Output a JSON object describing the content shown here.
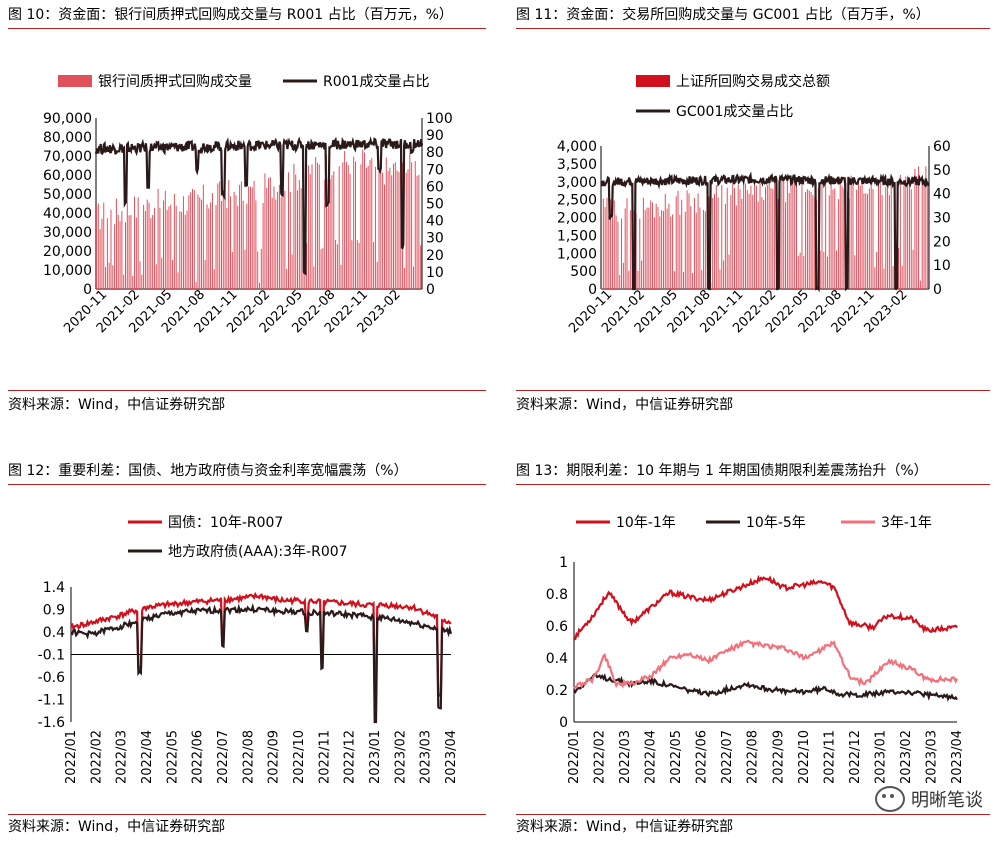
{
  "panels": [
    {
      "title": "图 10：资金面：银行间质押式回购成交量与 R001 占比（百万元，%）",
      "source": "资料来源：Wind，中信证券研究部"
    },
    {
      "title": "图 11：资金面：交易所回购成交量与 GC001 占比（百万手，%）",
      "source": "资料来源：Wind，中信证券研究部"
    },
    {
      "title": "图 12：重要利差：国债、地方政府债与资金利率宽幅震荡（%）",
      "source": "资料来源：Wind，中信证券研究部"
    },
    {
      "title": "图 13：期限利差：10 年期与 1 年期国债期限利差震荡抬升（%）",
      "source": "资料来源：Wind，中信证券研究部"
    }
  ],
  "watermark": {
    "text": "明晰笔谈",
    "icon": "wechat-icon"
  },
  "colors": {
    "red": "#d0101d",
    "dark": "#2b1a1a",
    "pink": "#f2727c",
    "barred": "#e0515c",
    "rule": "#b4201f"
  },
  "chart_data": [
    {
      "type": "bar",
      "title": "图 10：资金面：银行间质押式回购成交量与 R001 占比（百万元，%）",
      "x_ticks": [
        "2020-11",
        "2021-02",
        "2021-05",
        "2021-08",
        "2021-11",
        "2022-02",
        "2022-05",
        "2022-08",
        "2022-11",
        "2023-02"
      ],
      "y_left": {
        "range": [
          0,
          90000
        ],
        "ticks": [
          "0",
          "10,000",
          "20,000",
          "30,000",
          "40,000",
          "50,000",
          "60,000",
          "70,000",
          "80,000",
          "90,000"
        ]
      },
      "y_right": {
        "range": [
          0,
          100
        ],
        "ticks": [
          "0",
          "10",
          "20",
          "30",
          "40",
          "50",
          "60",
          "70",
          "80",
          "90",
          "100"
        ]
      },
      "series": [
        {
          "name": "银行间质押式回购成交量",
          "kind": "bar",
          "axis": "left",
          "anchors": [
            [
              0,
              38000
            ],
            [
              0.1,
              42000
            ],
            [
              0.2,
              45000
            ],
            [
              0.3,
              46000
            ],
            [
              0.4,
              50000
            ],
            [
              0.5,
              52000
            ],
            [
              0.6,
              58000
            ],
            [
              0.7,
              65000
            ],
            [
              0.8,
              68000
            ],
            [
              0.9,
              62000
            ],
            [
              1,
              66000
            ]
          ]
        },
        {
          "name": "R001成交量占比",
          "kind": "line",
          "axis": "right",
          "anchors": [
            [
              0,
              82
            ],
            [
              0.5,
              84
            ],
            [
              1,
              85
            ]
          ],
          "dips": [
            [
              0.09,
              50
            ],
            [
              0.16,
              60
            ],
            [
              0.31,
              70
            ],
            [
              0.39,
              55
            ],
            [
              0.46,
              60
            ],
            [
              0.57,
              55
            ],
            [
              0.64,
              10
            ],
            [
              0.71,
              50
            ],
            [
              0.87,
              70
            ],
            [
              0.94,
              25
            ],
            [
              0.97,
              80
            ]
          ]
        }
      ]
    },
    {
      "type": "bar",
      "title": "图 11：资金面：交易所回购成交量与 GC001 占比（百万手，%）",
      "x_ticks": [
        "2020-11",
        "2021-02",
        "2021-05",
        "2021-08",
        "2021-11",
        "2022-02",
        "2022-05",
        "2022-08",
        "2022-11",
        "2023-02"
      ],
      "y_left": {
        "range": [
          0,
          4000
        ],
        "ticks": [
          "0",
          "500",
          "1,000",
          "1,500",
          "2,000",
          "2,500",
          "3,000",
          "3,500",
          "4,000"
        ]
      },
      "y_right": {
        "range": [
          0,
          60
        ],
        "ticks": [
          "0",
          "10",
          "20",
          "30",
          "40",
          "50",
          "60"
        ]
      },
      "series": [
        {
          "name": "上证所回购交易成交总额",
          "kind": "bar",
          "axis": "left",
          "anchors": [
            [
              0,
              2200
            ],
            [
              0.15,
              2300
            ],
            [
              0.3,
              2500
            ],
            [
              0.45,
              2700
            ],
            [
              0.6,
              2800
            ],
            [
              0.75,
              2800
            ],
            [
              0.9,
              3000
            ],
            [
              1,
              3100
            ]
          ]
        },
        {
          "name": "GC001成交量占比",
          "kind": "line",
          "axis": "right",
          "anchors": [
            [
              0,
              45
            ],
            [
              0.5,
              46
            ],
            [
              1,
              45
            ]
          ],
          "dips": [
            [
              0.03,
              30
            ],
            [
              0.1,
              0
            ],
            [
              0.33,
              0
            ],
            [
              0.54,
              0
            ],
            [
              0.66,
              0
            ],
            [
              0.75,
              0
            ],
            [
              0.9,
              0
            ]
          ]
        }
      ]
    },
    {
      "type": "line",
      "title": "图 12：重要利差：国债、地方政府债与资金利率宽幅震荡（%）",
      "x_ticks": [
        "2022/01",
        "2022/02",
        "2022/03",
        "2022/04",
        "2022/05",
        "2022/06",
        "2022/07",
        "2022/08",
        "2022/09",
        "2022/10",
        "2022/11",
        "2022/12",
        "2023/01",
        "2023/02",
        "2023/03",
        "2023/04"
      ],
      "y_range": [
        -1.6,
        1.4
      ],
      "y_ticks": [
        "-1.6",
        "-1.1",
        "-0.6",
        "-0.1",
        "0.4",
        "0.9",
        "1.4"
      ],
      "series": [
        {
          "name": "国债：10年-R007",
          "color": "#d0101d",
          "anchors": [
            [
              0,
              0.5
            ],
            [
              0.05,
              0.6
            ],
            [
              0.12,
              0.75
            ],
            [
              0.2,
              0.95
            ],
            [
              0.25,
              1.0
            ],
            [
              0.3,
              1.05
            ],
            [
              0.45,
              1.15
            ],
            [
              0.5,
              1.2
            ],
            [
              0.55,
              1.1
            ],
            [
              0.6,
              1.1
            ],
            [
              0.7,
              1.05
            ],
            [
              0.78,
              1.0
            ],
            [
              0.83,
              1.0
            ],
            [
              0.9,
              0.95
            ],
            [
              1,
              0.6
            ]
          ],
          "dips": [
            [
              0.18,
              -0.4
            ],
            [
              0.4,
              0.2
            ],
            [
              0.62,
              0.5
            ],
            [
              0.66,
              -0.3
            ],
            [
              0.8,
              -1.0
            ],
            [
              0.97,
              -1.0
            ]
          ]
        },
        {
          "name": "地方政府债(AAA):3年-R007",
          "color": "#2b1a1a",
          "anchors": [
            [
              0,
              0.4
            ],
            [
              0.05,
              0.35
            ],
            [
              0.12,
              0.5
            ],
            [
              0.2,
              0.7
            ],
            [
              0.25,
              0.8
            ],
            [
              0.3,
              0.85
            ],
            [
              0.45,
              0.9
            ],
            [
              0.5,
              0.9
            ],
            [
              0.55,
              0.85
            ],
            [
              0.6,
              0.85
            ],
            [
              0.7,
              0.8
            ],
            [
              0.78,
              0.75
            ],
            [
              0.83,
              0.7
            ],
            [
              0.9,
              0.6
            ],
            [
              1,
              0.4
            ]
          ],
          "dips": [
            [
              0.18,
              -0.5
            ],
            [
              0.4,
              0.1
            ],
            [
              0.62,
              0.4
            ],
            [
              0.66,
              -0.4
            ],
            [
              0.8,
              -1.6
            ],
            [
              0.97,
              -1.3
            ]
          ]
        }
      ]
    },
    {
      "type": "line",
      "title": "图 13：期限利差：10 年期与 1 年期国债期限利差震荡抬升（%）",
      "x_ticks": [
        "2022/01",
        "2022/02",
        "2022/03",
        "2022/04",
        "2022/05",
        "2022/06",
        "2022/07",
        "2022/08",
        "2022/09",
        "2022/10",
        "2022/11",
        "2022/12",
        "2023/01",
        "2023/02",
        "2023/03",
        "2023/04"
      ],
      "y_range": [
        0,
        1.05
      ],
      "y_ticks": [
        "0",
        "0.2",
        "0.4",
        "0.6",
        "0.8",
        "1"
      ],
      "series": [
        {
          "name": "10年-1年",
          "color": "#d0101d",
          "anchors": [
            [
              0,
              0.55
            ],
            [
              0.05,
              0.7
            ],
            [
              0.09,
              0.85
            ],
            [
              0.12,
              0.75
            ],
            [
              0.15,
              0.65
            ],
            [
              0.2,
              0.75
            ],
            [
              0.25,
              0.85
            ],
            [
              0.3,
              0.82
            ],
            [
              0.35,
              0.8
            ],
            [
              0.4,
              0.85
            ],
            [
              0.45,
              0.9
            ],
            [
              0.5,
              0.95
            ],
            [
              0.55,
              0.88
            ],
            [
              0.6,
              0.9
            ],
            [
              0.65,
              0.92
            ],
            [
              0.68,
              0.88
            ],
            [
              0.72,
              0.65
            ],
            [
              0.78,
              0.62
            ],
            [
              0.82,
              0.7
            ],
            [
              0.88,
              0.68
            ],
            [
              0.92,
              0.6
            ],
            [
              1,
              0.62
            ]
          ]
        },
        {
          "name": "10年-5年",
          "color": "#2b1a1a",
          "anchors": [
            [
              0,
              0.2
            ],
            [
              0.05,
              0.3
            ],
            [
              0.1,
              0.28
            ],
            [
              0.15,
              0.25
            ],
            [
              0.2,
              0.27
            ],
            [
              0.28,
              0.22
            ],
            [
              0.35,
              0.18
            ],
            [
              0.45,
              0.25
            ],
            [
              0.5,
              0.22
            ],
            [
              0.55,
              0.2
            ],
            [
              0.6,
              0.2
            ],
            [
              0.66,
              0.22
            ],
            [
              0.7,
              0.18
            ],
            [
              0.75,
              0.18
            ],
            [
              0.85,
              0.2
            ],
            [
              0.95,
              0.17
            ],
            [
              1,
              0.16
            ]
          ]
        },
        {
          "name": "3年-1年",
          "color": "#f2727c",
          "anchors": [
            [
              0,
              0.23
            ],
            [
              0.05,
              0.28
            ],
            [
              0.08,
              0.44
            ],
            [
              0.11,
              0.25
            ],
            [
              0.15,
              0.25
            ],
            [
              0.2,
              0.3
            ],
            [
              0.25,
              0.42
            ],
            [
              0.3,
              0.45
            ],
            [
              0.35,
              0.4
            ],
            [
              0.4,
              0.47
            ],
            [
              0.45,
              0.52
            ],
            [
              0.5,
              0.5
            ],
            [
              0.55,
              0.48
            ],
            [
              0.6,
              0.42
            ],
            [
              0.65,
              0.48
            ],
            [
              0.68,
              0.52
            ],
            [
              0.72,
              0.3
            ],
            [
              0.76,
              0.25
            ],
            [
              0.82,
              0.4
            ],
            [
              0.88,
              0.35
            ],
            [
              0.92,
              0.28
            ],
            [
              1,
              0.28
            ]
          ]
        }
      ]
    }
  ]
}
